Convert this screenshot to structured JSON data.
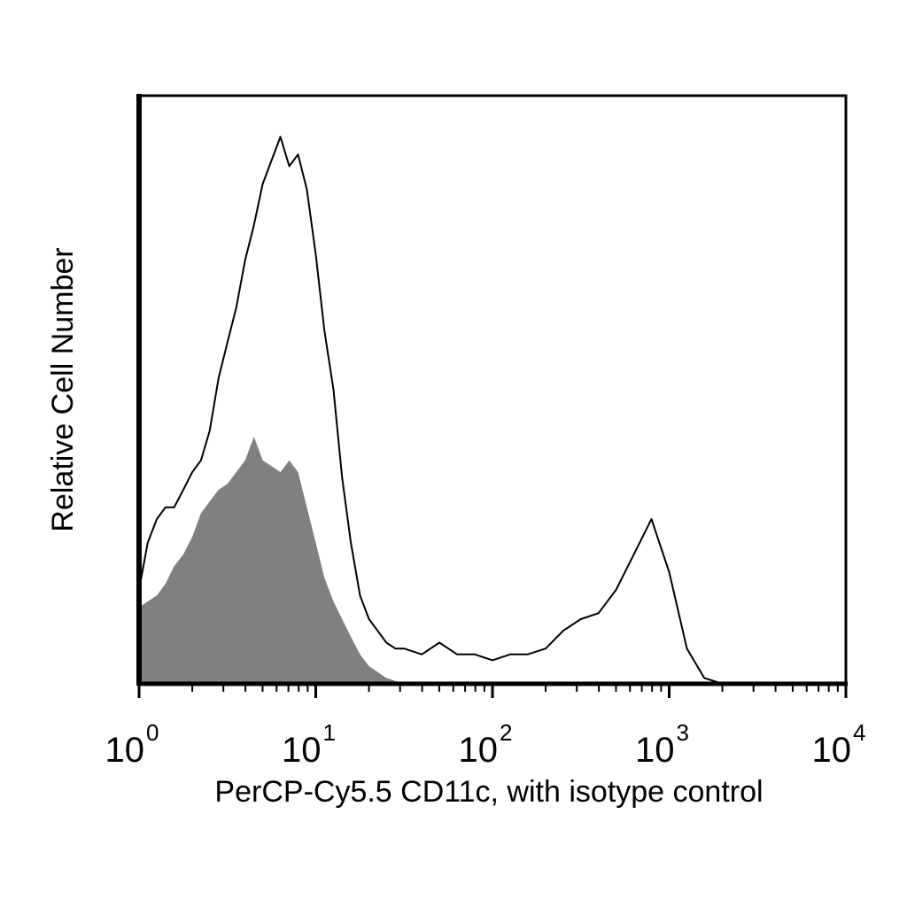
{
  "chart_data": {
    "type": "area",
    "xlabel": "PerCP-Cy5.5 CD11c, with isotype control",
    "ylabel": "Relative Cell Number",
    "x_scale": "log",
    "xlim": [
      1,
      10000
    ],
    "ylim": [
      0,
      1
    ],
    "grid": false,
    "x_ticks": [
      {
        "base": "10",
        "exp": "0",
        "value": 1
      },
      {
        "base": "10",
        "exp": "1",
        "value": 10
      },
      {
        "base": "10",
        "exp": "2",
        "value": 100
      },
      {
        "base": "10",
        "exp": "3",
        "value": 1000
      },
      {
        "base": "10",
        "exp": "4",
        "value": 10000
      }
    ],
    "series": [
      {
        "style": "outline",
        "color": "#000000",
        "x": [
          1.0,
          1.12,
          1.26,
          1.41,
          1.58,
          1.78,
          2.0,
          2.24,
          2.51,
          2.82,
          3.16,
          3.55,
          3.98,
          4.47,
          5.01,
          5.62,
          6.31,
          7.08,
          7.94,
          8.91,
          10.0,
          11.2,
          12.6,
          14.1,
          15.8,
          17.8,
          20.0,
          22.4,
          25.1,
          28.2,
          31.6,
          39.8,
          50.1,
          63.1,
          79.4,
          100,
          126,
          158,
          200,
          251,
          316,
          398,
          501,
          631,
          794,
          1000,
          1260,
          1580,
          2000,
          2510
        ],
        "y": [
          0.16,
          0.24,
          0.28,
          0.3,
          0.3,
          0.33,
          0.36,
          0.38,
          0.43,
          0.52,
          0.58,
          0.64,
          0.72,
          0.78,
          0.85,
          0.89,
          0.93,
          0.88,
          0.9,
          0.84,
          0.73,
          0.6,
          0.5,
          0.35,
          0.24,
          0.15,
          0.11,
          0.09,
          0.07,
          0.06,
          0.06,
          0.05,
          0.07,
          0.05,
          0.05,
          0.04,
          0.05,
          0.05,
          0.06,
          0.09,
          0.11,
          0.12,
          0.16,
          0.22,
          0.28,
          0.19,
          0.06,
          0.01,
          0.0,
          0.0
        ]
      },
      {
        "style": "filled",
        "color": "#808080",
        "x": [
          1.0,
          1.12,
          1.26,
          1.41,
          1.58,
          1.78,
          2.0,
          2.24,
          2.51,
          2.82,
          3.16,
          3.55,
          3.98,
          4.47,
          5.01,
          5.62,
          6.31,
          7.08,
          7.94,
          8.91,
          10.0,
          11.2,
          12.6,
          14.1,
          15.8,
          17.8,
          20.0,
          22.4,
          25.1,
          28.2,
          31.6
        ],
        "y": [
          0.13,
          0.14,
          0.15,
          0.17,
          0.2,
          0.22,
          0.25,
          0.29,
          0.31,
          0.33,
          0.34,
          0.36,
          0.38,
          0.42,
          0.38,
          0.37,
          0.36,
          0.38,
          0.36,
          0.3,
          0.24,
          0.18,
          0.14,
          0.11,
          0.08,
          0.05,
          0.03,
          0.02,
          0.01,
          0.005,
          0.0
        ]
      }
    ]
  }
}
